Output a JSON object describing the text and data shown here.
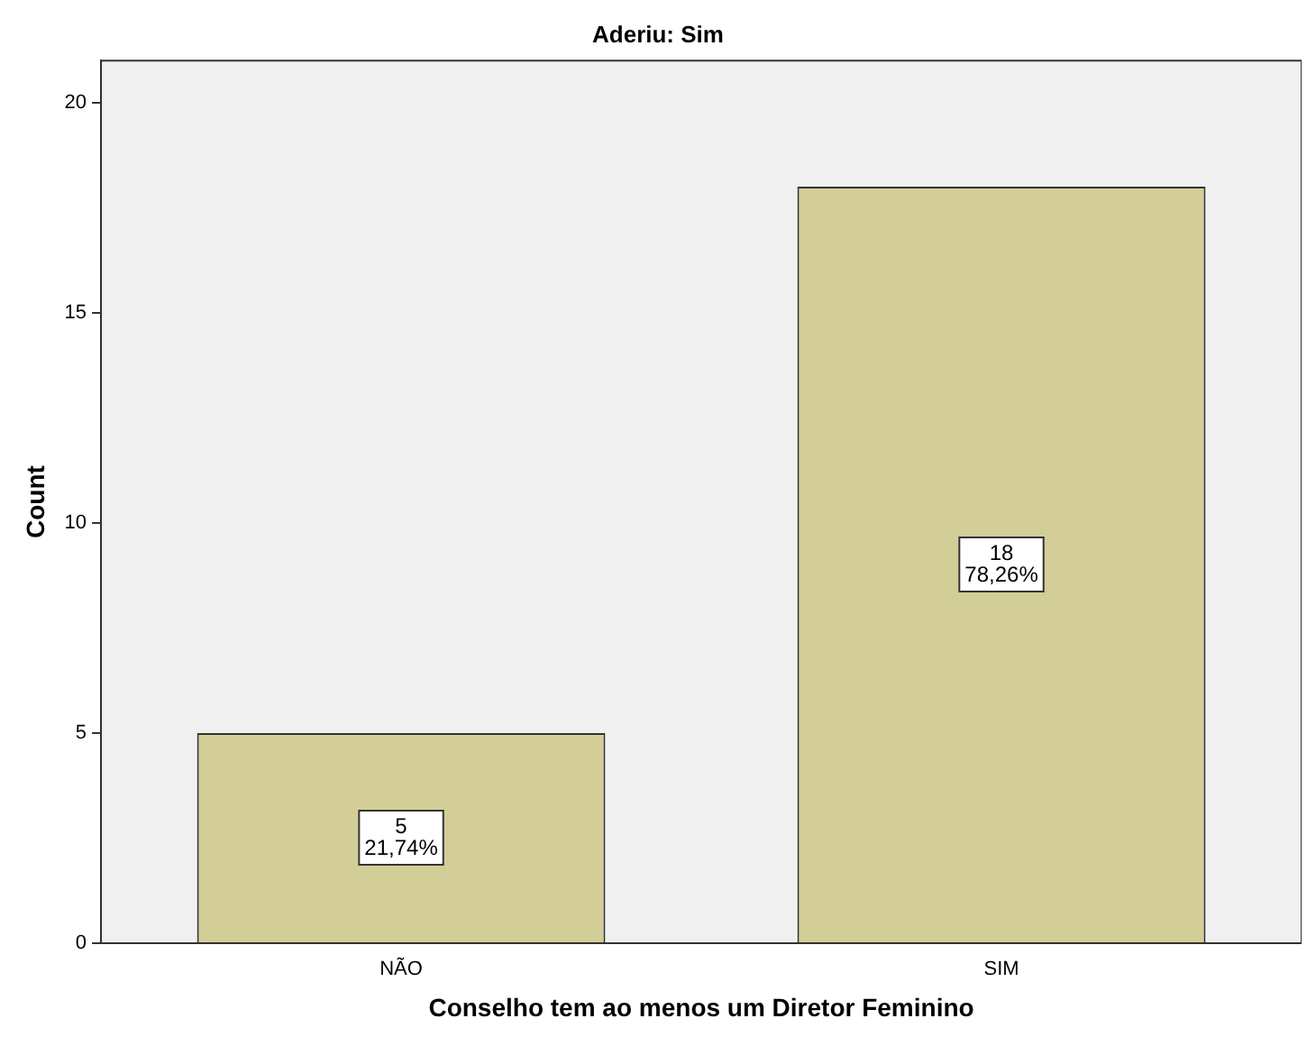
{
  "chart_data": {
    "type": "bar",
    "title": "Aderiu: Sim",
    "xlabel": "Conselho tem ao menos um Diretor Feminino",
    "ylabel": "Count",
    "categories": [
      "NÃO",
      "SIM"
    ],
    "values": [
      5,
      18
    ],
    "color": "#d3ce97",
    "value_labels": [
      "5\n21,74%",
      "18\n78,26%"
    ],
    "ylim": [
      0,
      21
    ],
    "yticks": [
      0,
      5,
      10,
      15,
      20
    ],
    "grid": false,
    "legend": false
  }
}
